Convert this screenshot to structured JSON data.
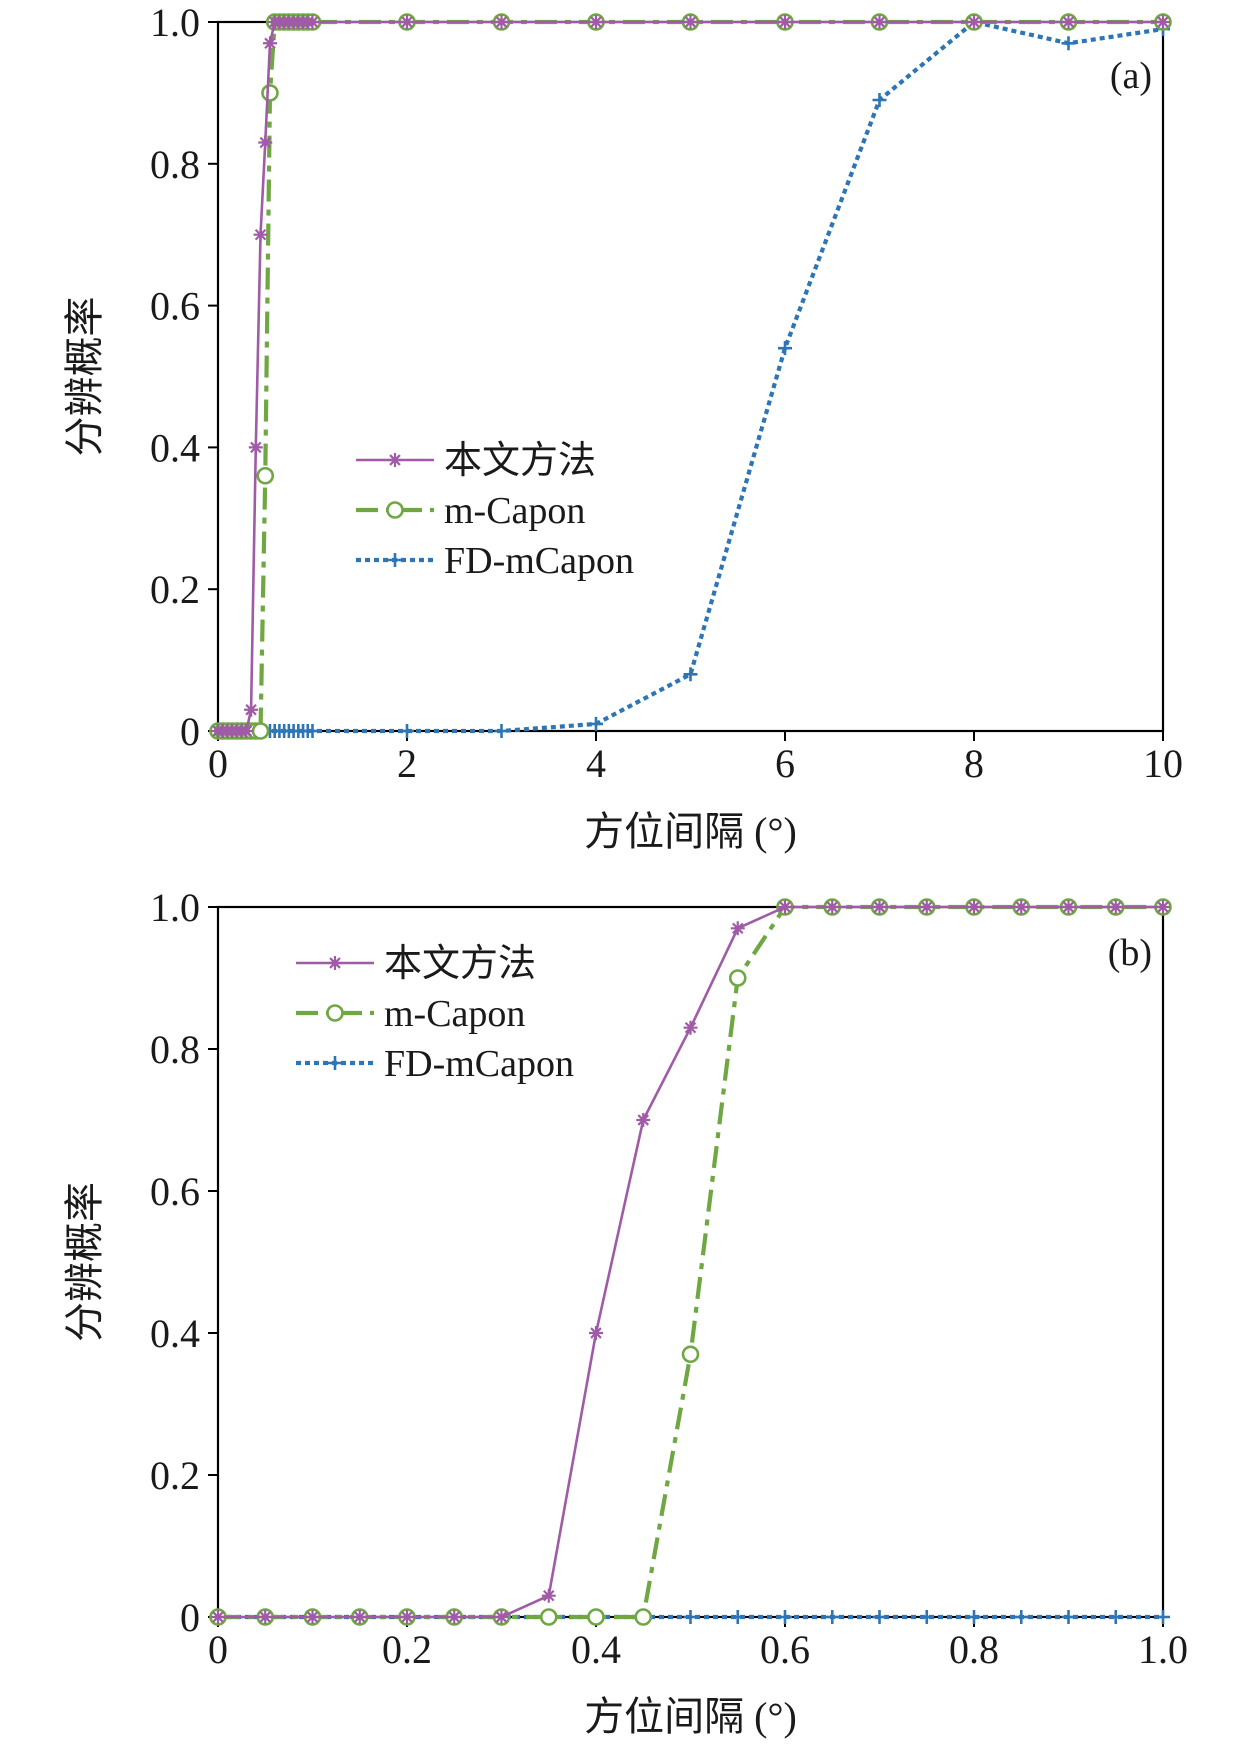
{
  "chart_data": [
    {
      "type": "line",
      "panel_label": "(a)",
      "xlabel": "方位间隔 (°)",
      "ylabel": "分辨概率",
      "xlim": [
        0,
        10
      ],
      "ylim": [
        0,
        1.0
      ],
      "xticks": [
        "0",
        "2",
        "4",
        "6",
        "8",
        "10"
      ],
      "yticks": [
        "0",
        "0.2",
        "0.4",
        "0.6",
        "0.8",
        "1.0"
      ],
      "grid": false,
      "legend_position": "center-left",
      "series": [
        {
          "name": "本文方法",
          "color": "#A05BA6",
          "marker": "asterisk",
          "line": "solid",
          "x": [
            0,
            0.05,
            0.1,
            0.15,
            0.2,
            0.25,
            0.3,
            0.35,
            0.4,
            0.45,
            0.5,
            0.55,
            0.6,
            0.65,
            0.7,
            0.75,
            0.8,
            0.85,
            0.9,
            0.95,
            1,
            2,
            3,
            4,
            5,
            6,
            7,
            8,
            9,
            10
          ],
          "y": [
            0,
            0,
            0,
            0,
            0,
            0,
            0,
            0.03,
            0.4,
            0.7,
            0.83,
            0.97,
            1,
            1,
            1,
            1,
            1,
            1,
            1,
            1,
            1,
            1,
            1,
            1,
            1,
            1,
            1,
            1,
            1,
            1
          ]
        },
        {
          "name": "m-Capon",
          "color": "#6FA843",
          "marker": "circle",
          "line": "dashdot",
          "x": [
            0,
            0.05,
            0.1,
            0.15,
            0.2,
            0.25,
            0.3,
            0.35,
            0.4,
            0.45,
            0.5,
            0.55,
            0.6,
            0.65,
            0.7,
            0.75,
            0.8,
            0.85,
            0.9,
            0.95,
            1,
            2,
            3,
            4,
            5,
            6,
            7,
            8,
            9,
            10
          ],
          "y": [
            0,
            0,
            0,
            0,
            0,
            0,
            0,
            0,
            0,
            0,
            0.36,
            0.9,
            1,
            1,
            1,
            1,
            1,
            1,
            1,
            1,
            1,
            1,
            1,
            1,
            1,
            1,
            1,
            1,
            1,
            1
          ]
        },
        {
          "name": "FD-mCapon",
          "color": "#2E75B6",
          "marker": "plus",
          "line": "dotted",
          "x": [
            0,
            0.05,
            0.1,
            0.15,
            0.2,
            0.25,
            0.3,
            0.35,
            0.4,
            0.45,
            0.5,
            0.55,
            0.6,
            0.65,
            0.7,
            0.75,
            0.8,
            0.85,
            0.9,
            0.95,
            1,
            2,
            3,
            4,
            5,
            6,
            7,
            8,
            9,
            10
          ],
          "y": [
            0,
            0,
            0,
            0,
            0,
            0,
            0,
            0,
            0,
            0,
            0,
            0,
            0,
            0,
            0,
            0,
            0,
            0,
            0,
            0,
            0,
            0,
            0,
            0.01,
            0.08,
            0.54,
            0.89,
            1,
            0.97,
            0.99
          ]
        }
      ]
    },
    {
      "type": "line",
      "panel_label": "(b)",
      "xlabel": "方位间隔 (°)",
      "ylabel": "分辨概率",
      "xlim": [
        0,
        1.0
      ],
      "ylim": [
        0,
        1.0
      ],
      "xticks": [
        "0",
        "0.2",
        "0.4",
        "0.6",
        "0.8",
        "1.0"
      ],
      "yticks": [
        "0",
        "0.2",
        "0.4",
        "0.6",
        "0.8",
        "1.0"
      ],
      "grid": false,
      "legend_position": "top-left",
      "series": [
        {
          "name": "本文方法",
          "color": "#A05BA6",
          "marker": "asterisk",
          "line": "solid",
          "x": [
            0,
            0.05,
            0.1,
            0.15,
            0.2,
            0.25,
            0.3,
            0.35,
            0.4,
            0.45,
            0.5,
            0.55,
            0.6,
            0.65,
            0.7,
            0.75,
            0.8,
            0.85,
            0.9,
            0.95,
            1.0
          ],
          "y": [
            0,
            0,
            0,
            0,
            0,
            0,
            0,
            0.03,
            0.4,
            0.7,
            0.83,
            0.97,
            1,
            1,
            1,
            1,
            1,
            1,
            1,
            1,
            1
          ]
        },
        {
          "name": "m-Capon",
          "color": "#6FA843",
          "marker": "circle",
          "line": "dashdot",
          "x": [
            0,
            0.05,
            0.1,
            0.15,
            0.2,
            0.25,
            0.3,
            0.35,
            0.4,
            0.45,
            0.5,
            0.55,
            0.6,
            0.65,
            0.7,
            0.75,
            0.8,
            0.85,
            0.9,
            0.95,
            1.0
          ],
          "y": [
            0,
            0,
            0,
            0,
            0,
            0,
            0,
            0,
            0,
            0,
            0.37,
            0.9,
            1,
            1,
            1,
            1,
            1,
            1,
            1,
            1,
            1
          ]
        },
        {
          "name": "FD-mCapon",
          "color": "#2E75B6",
          "marker": "plus",
          "line": "dotted",
          "x": [
            0,
            0.05,
            0.1,
            0.15,
            0.2,
            0.25,
            0.3,
            0.35,
            0.4,
            0.45,
            0.5,
            0.55,
            0.6,
            0.65,
            0.7,
            0.75,
            0.8,
            0.85,
            0.9,
            0.95,
            1.0
          ],
          "y": [
            0,
            0,
            0,
            0,
            0,
            0,
            0,
            0,
            0,
            0,
            0,
            0,
            0,
            0,
            0,
            0,
            0,
            0,
            0,
            0,
            0
          ]
        }
      ]
    }
  ]
}
